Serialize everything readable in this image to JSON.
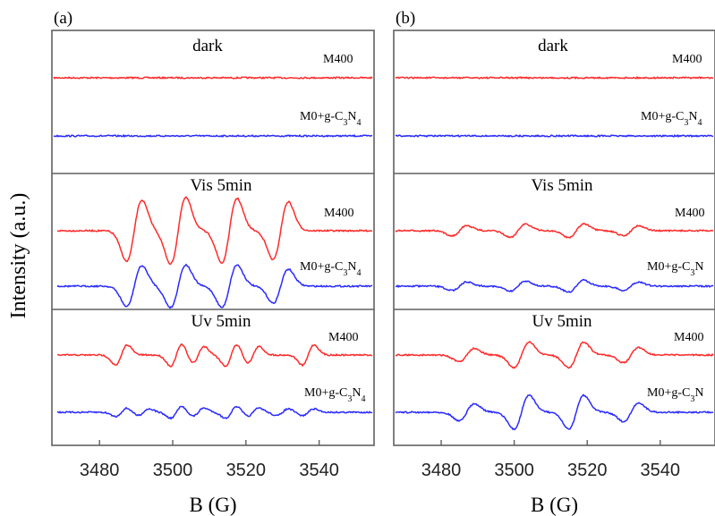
{
  "ylabel": "Intensity (a.u.)",
  "colors": {
    "red": "#ff2a2a",
    "blue": "#2a2aff",
    "frame": "#606060"
  },
  "panels": [
    {
      "label": "(a)",
      "xlabel": "B (G)",
      "xlim": [
        3467,
        3555
      ],
      "xticks": [
        "3480",
        "3500",
        "3520",
        "3540"
      ],
      "sections": [
        {
          "title": "dark",
          "traces": [
            {
              "label_main": "M400",
              "sub": ""
            },
            {
              "label_main": "M0+g-C",
              "sub": "3",
              "label_mid": "N",
              "sub2": "4"
            }
          ]
        },
        {
          "title": "Vis 5min",
          "traces": [
            {
              "label_main": "M400",
              "sub": ""
            },
            {
              "label_main": "M0+g-C",
              "sub": "3",
              "label_mid": "N",
              "sub2": "4"
            }
          ]
        },
        {
          "title": "Uv 5min",
          "traces": [
            {
              "label_main": "M400",
              "sub": ""
            },
            {
              "label_main": "M0+g-C",
              "sub": "3",
              "label_mid": "N",
              "sub2": "4"
            }
          ]
        }
      ]
    },
    {
      "label": "(b)",
      "xlabel": "B (G)",
      "xlim": [
        3467,
        3555
      ],
      "xticks": [
        "3480",
        "3500",
        "3520",
        "3540"
      ],
      "sections": [
        {
          "title": "dark",
          "traces": [
            {
              "label_main": "M400",
              "sub": ""
            },
            {
              "label_main": "M0+g-C",
              "sub": "3",
              "label_mid": "N",
              "sub2": "4"
            }
          ]
        },
        {
          "title": "Vis 5min",
          "traces": [
            {
              "label_main": "M400",
              "sub": ""
            },
            {
              "label_main": "M0+g-C",
              "sub": "3",
              "label_mid": "N",
              "sub2": ""
            }
          ]
        },
        {
          "title": "Uv 5min",
          "traces": [
            {
              "label_main": "M400",
              "sub": ""
            },
            {
              "label_main": "M0+g-C",
              "sub": "3",
              "label_mid": "N",
              "sub2": ""
            }
          ]
        }
      ]
    }
  ],
  "chart_data": {
    "type": "line",
    "title": "",
    "xlabel": "B (G)",
    "ylabel": "Intensity (a.u.)",
    "xlim": [
      3467,
      3555
    ],
    "grid": false,
    "panels": [
      {
        "label": "(a)",
        "sections": [
          {
            "condition": "dark",
            "series": [
              {
                "name": "M400",
                "color": "red",
                "peaks": []
              },
              {
                "name": "M0+g-C3N4",
                "color": "blue",
                "peaks": []
              }
            ]
          },
          {
            "condition": "Vis 5min",
            "series": [
              {
                "name": "M400",
                "color": "red",
                "peaks": [
                  [
                    3489.5,
                    3.6
                  ],
                  [
                    3501.5,
                    3.9
                  ],
                  [
                    3515.5,
                    3.8
                  ],
                  [
                    3529.5,
                    3.4
                  ]
                ]
              },
              {
                "name": "M0+g-C3N4",
                "color": "blue",
                "peaks": [
                  [
                    3489.5,
                    2.4
                  ],
                  [
                    3501.5,
                    2.5
                  ],
                  [
                    3515.5,
                    2.5
                  ],
                  [
                    3529.5,
                    2.0
                  ]
                ]
              }
            ]
          },
          {
            "condition": "Uv 5min",
            "series": [
              {
                "name": "M400",
                "color": "red",
                "peaks": [
                  [
                    3486,
                    1.2
                  ],
                  [
                    3501,
                    1.3
                  ],
                  [
                    3507,
                    1.0
                  ],
                  [
                    3516,
                    1.3
                  ],
                  [
                    3522,
                    1.0
                  ],
                  [
                    3537,
                    1.2
                  ]
                ]
              },
              {
                "name": "M0+g-C3N4",
                "color": "blue",
                "peaks": [
                  [
                    3486,
                    0.5
                  ],
                  [
                    3492,
                    0.4
                  ],
                  [
                    3501,
                    0.7
                  ],
                  [
                    3507,
                    0.5
                  ],
                  [
                    3516,
                    0.7
                  ],
                  [
                    3522,
                    0.5
                  ],
                  [
                    3530,
                    0.4
                  ],
                  [
                    3537,
                    0.4
                  ]
                ]
              }
            ]
          }
        ]
      },
      {
        "label": "(b)",
        "sections": [
          {
            "condition": "dark",
            "series": [
              {
                "name": "M400",
                "color": "red",
                "peaks": []
              },
              {
                "name": "M0+g-C3N4",
                "color": "blue",
                "peaks": []
              }
            ]
          },
          {
            "condition": "Vis 5min",
            "series": [
              {
                "name": "M400",
                "color": "red",
                "peaks": [
                  [
                    3485,
                    0.6
                  ],
                  [
                    3501,
                    0.8
                  ],
                  [
                    3517,
                    0.8
                  ],
                  [
                    3532,
                    0.6
                  ]
                ]
              },
              {
                "name": "M0+g-C3N4",
                "color": "blue",
                "peaks": [
                  [
                    3485,
                    0.5
                  ],
                  [
                    3501,
                    0.6
                  ],
                  [
                    3517,
                    0.7
                  ],
                  [
                    3532,
                    0.5
                  ]
                ]
              }
            ]
          },
          {
            "condition": "Uv 5min",
            "series": [
              {
                "name": "M400",
                "color": "red",
                "peaks": [
                  [
                    3487,
                    0.8
                  ],
                  [
                    3502,
                    1.5
                  ],
                  [
                    3517,
                    1.5
                  ],
                  [
                    3532,
                    0.9
                  ]
                ]
              },
              {
                "name": "M0+g-C3N4",
                "color": "blue",
                "peaks": [
                  [
                    3487,
                    1.0
                  ],
                  [
                    3502,
                    2.0
                  ],
                  [
                    3517,
                    2.0
                  ],
                  [
                    3532,
                    1.1
                  ]
                ]
              }
            ]
          }
        ]
      }
    ]
  }
}
